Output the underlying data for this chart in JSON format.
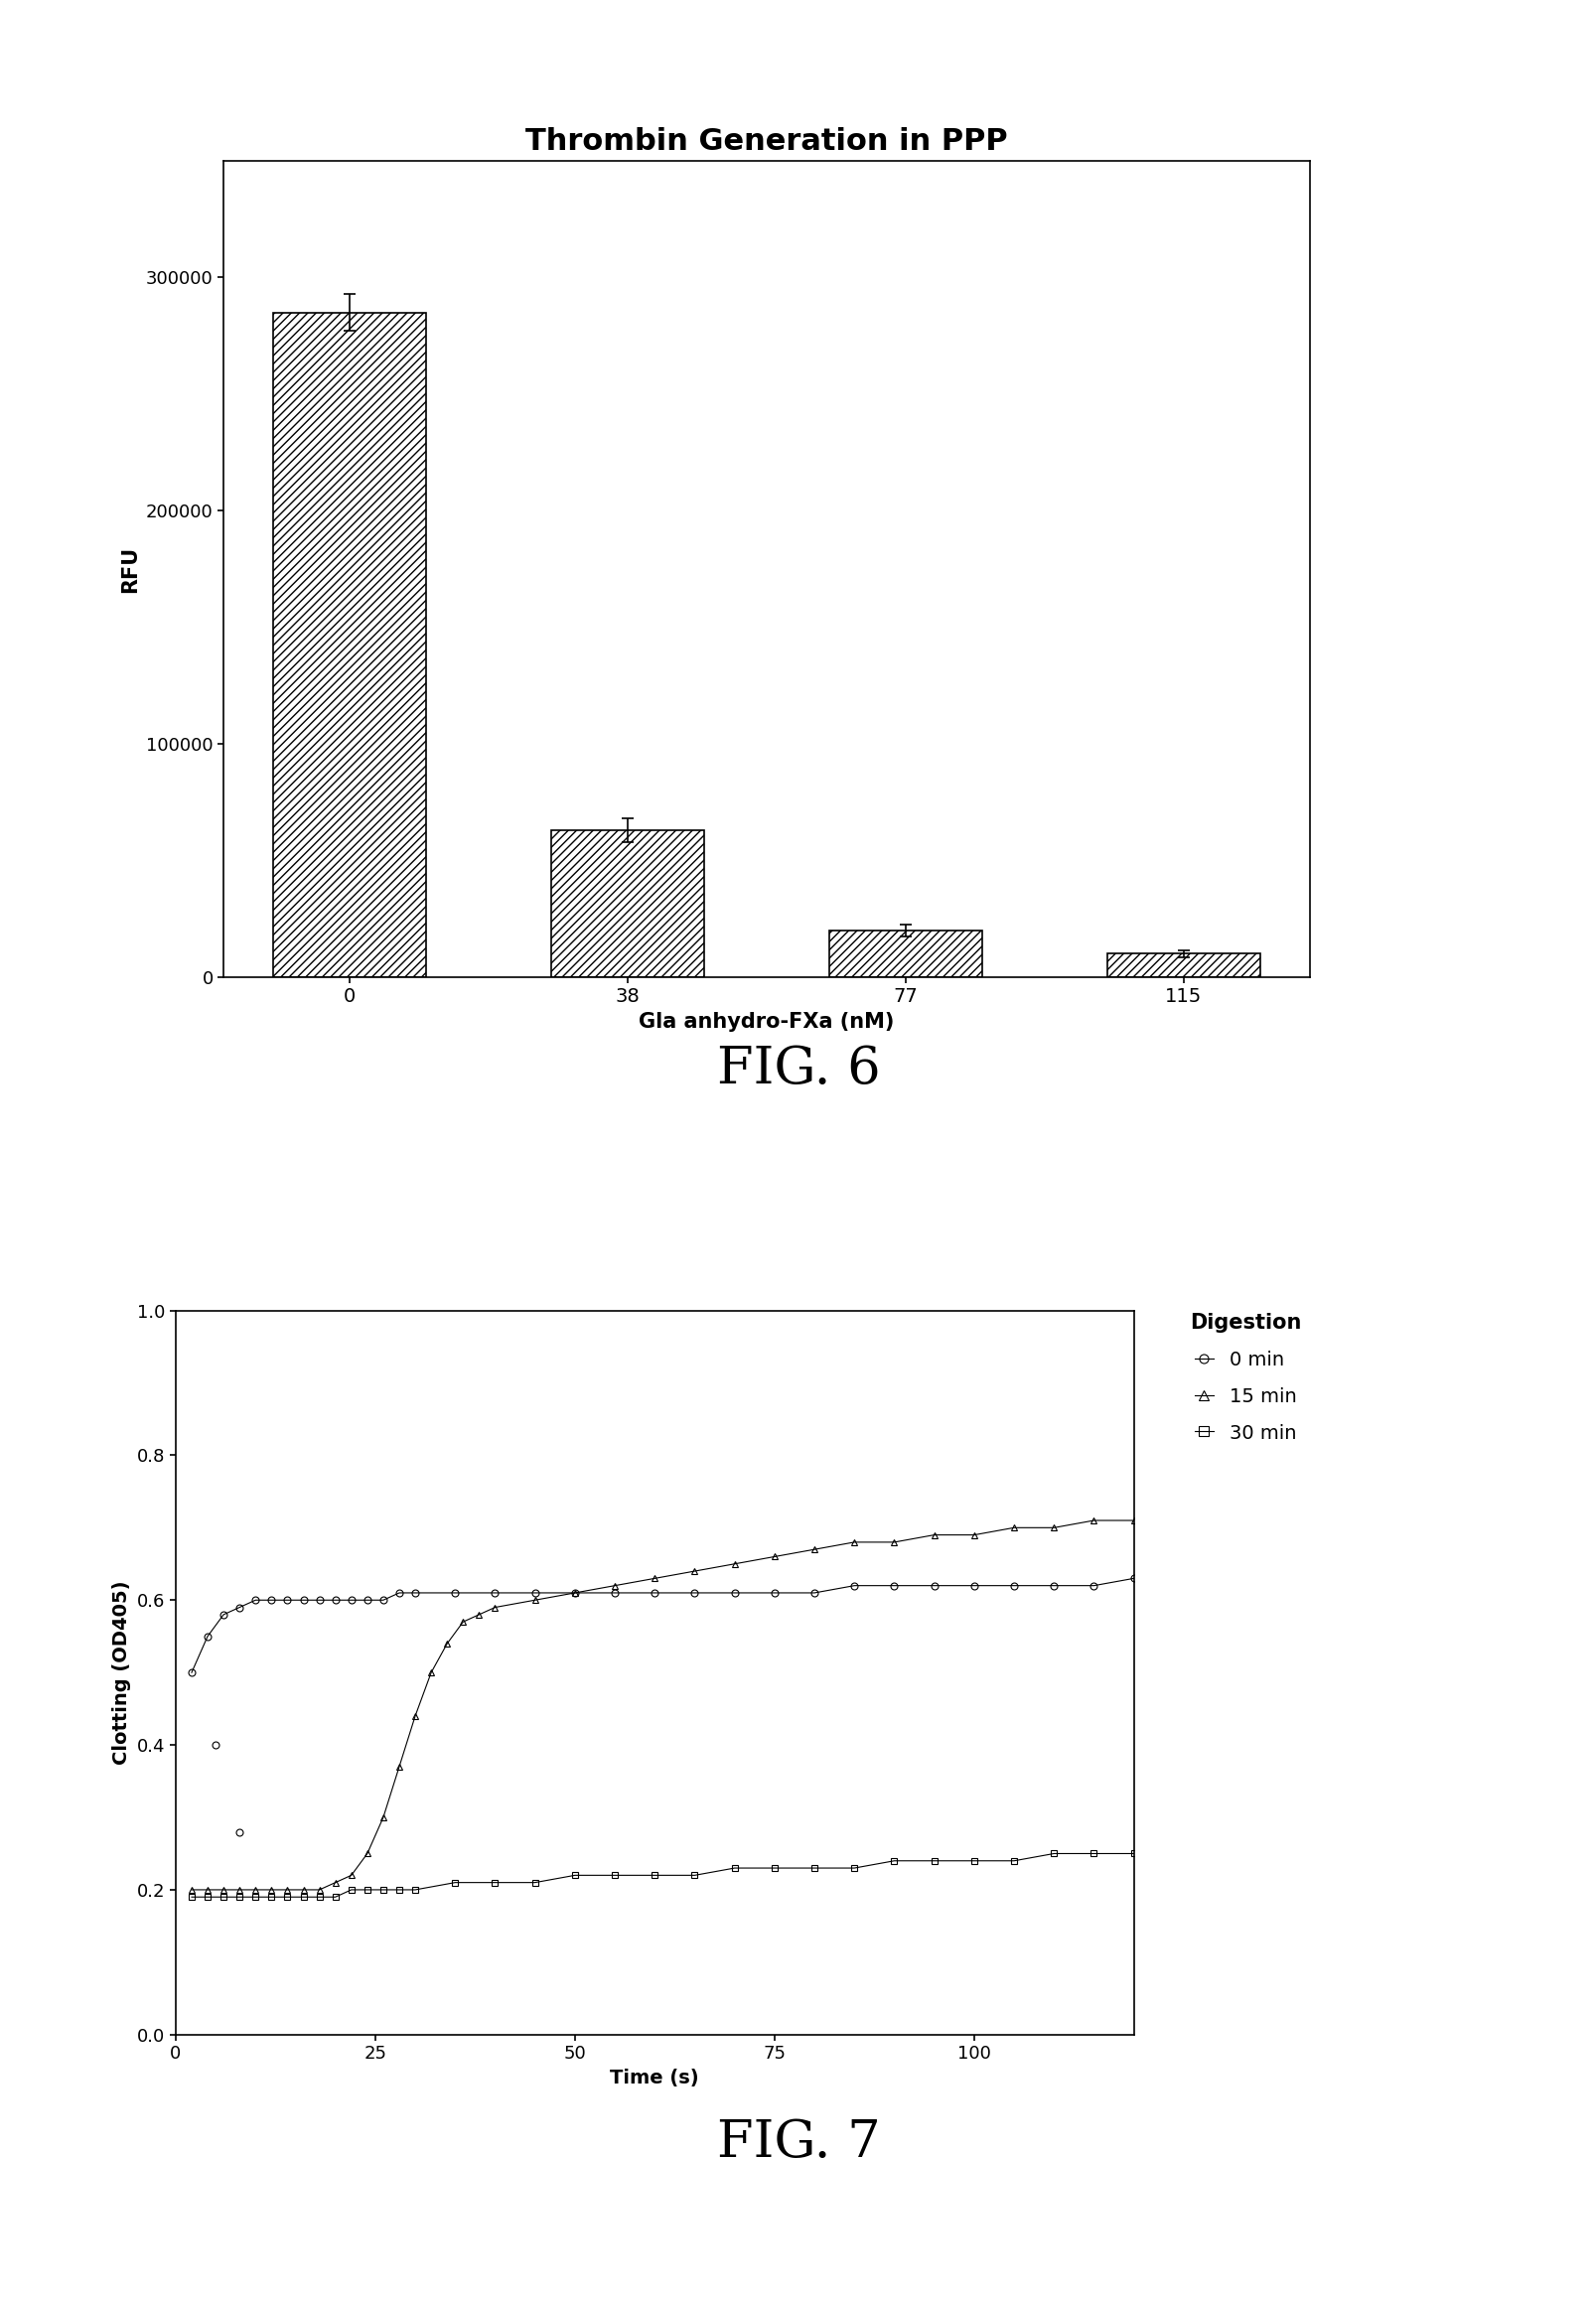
{
  "fig6": {
    "title": "Thrombin Generation in PPP",
    "xlabel": "Gla anhydro-FXa (nM)",
    "ylabel": "RFU",
    "categories": [
      0,
      38,
      77,
      115
    ],
    "values": [
      285000,
      63000,
      20000,
      10000
    ],
    "errors": [
      8000,
      5000,
      2500,
      1500
    ],
    "ylim": [
      0,
      350000
    ],
    "yticks": [
      0,
      100000,
      200000,
      300000
    ],
    "bar_color": "white",
    "bar_edgecolor": "black",
    "hatch": "////"
  },
  "fig7": {
    "xlabel": "Time (s)",
    "ylabel": "Clotting (OD405)",
    "legend_title": "Digestion",
    "ylim": [
      0.0,
      1.0
    ],
    "xlim": [
      0,
      120
    ],
    "xticks": [
      0,
      25,
      50,
      75,
      100
    ],
    "yticks": [
      0.0,
      0.2,
      0.4,
      0.6,
      0.8,
      1.0
    ],
    "series": [
      {
        "label": "0 min",
        "marker": "o",
        "color": "black",
        "markersize": 5,
        "main_x": [
          2,
          4,
          6,
          8,
          10,
          12,
          14,
          16,
          18,
          20,
          22,
          24,
          26,
          28,
          30,
          35,
          40,
          45,
          50,
          55,
          60,
          65,
          70,
          75,
          80,
          85,
          90,
          95,
          100,
          105,
          110,
          115,
          120
        ],
        "main_y": [
          0.5,
          0.55,
          0.58,
          0.59,
          0.6,
          0.6,
          0.6,
          0.6,
          0.6,
          0.6,
          0.6,
          0.6,
          0.6,
          0.61,
          0.61,
          0.61,
          0.61,
          0.61,
          0.61,
          0.61,
          0.61,
          0.61,
          0.61,
          0.61,
          0.61,
          0.62,
          0.62,
          0.62,
          0.62,
          0.62,
          0.62,
          0.62,
          0.63
        ],
        "scatter_x": [
          5,
          8
        ],
        "scatter_y": [
          0.4,
          0.28
        ]
      },
      {
        "label": "15 min",
        "marker": "^",
        "color": "black",
        "markersize": 5,
        "main_x": [
          2,
          4,
          6,
          8,
          10,
          12,
          14,
          16,
          18,
          20,
          22,
          24,
          26,
          28,
          30,
          32,
          34,
          36,
          38,
          40,
          45,
          50,
          55,
          60,
          65,
          70,
          75,
          80,
          85,
          90,
          95,
          100,
          105,
          110,
          115,
          120
        ],
        "main_y": [
          0.2,
          0.2,
          0.2,
          0.2,
          0.2,
          0.2,
          0.2,
          0.2,
          0.2,
          0.21,
          0.22,
          0.25,
          0.3,
          0.37,
          0.44,
          0.5,
          0.54,
          0.57,
          0.58,
          0.59,
          0.6,
          0.61,
          0.62,
          0.63,
          0.64,
          0.65,
          0.66,
          0.67,
          0.68,
          0.68,
          0.69,
          0.69,
          0.7,
          0.7,
          0.71,
          0.71
        ]
      },
      {
        "label": "30 min",
        "marker": "s",
        "color": "black",
        "markersize": 5,
        "main_x": [
          2,
          4,
          6,
          8,
          10,
          12,
          14,
          16,
          18,
          20,
          22,
          24,
          26,
          28,
          30,
          35,
          40,
          45,
          50,
          55,
          60,
          65,
          70,
          75,
          80,
          85,
          90,
          95,
          100,
          105,
          110,
          115,
          120
        ],
        "main_y": [
          0.19,
          0.19,
          0.19,
          0.19,
          0.19,
          0.19,
          0.19,
          0.19,
          0.19,
          0.19,
          0.2,
          0.2,
          0.2,
          0.2,
          0.2,
          0.21,
          0.21,
          0.21,
          0.22,
          0.22,
          0.22,
          0.22,
          0.23,
          0.23,
          0.23,
          0.23,
          0.24,
          0.24,
          0.24,
          0.24,
          0.25,
          0.25,
          0.25
        ]
      }
    ]
  },
  "fig6_label": "FIG. 6",
  "fig7_label": "FIG. 7",
  "background_color": "white"
}
